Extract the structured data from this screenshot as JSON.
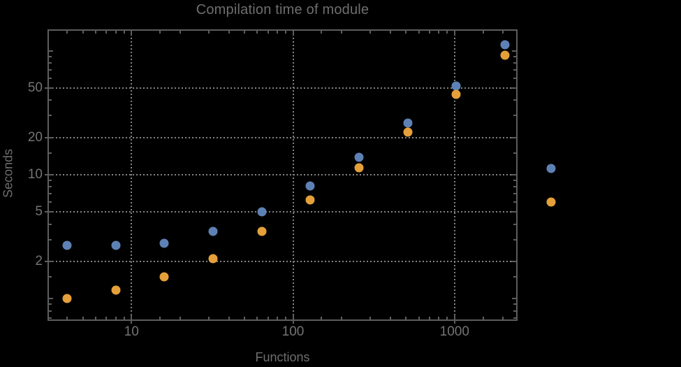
{
  "title": "Compilation time of module",
  "colors": {
    "background": "#000000",
    "frame": "#5d5d5d",
    "gridline": "#838383",
    "text": "#6e6e6e",
    "series1_blue": "#5E81B5",
    "series2_orange": "#E5A03A"
  },
  "chart_data": {
    "type": "scatter",
    "title": "Compilation time of module",
    "xlabel": "Functions",
    "ylabel": "Seconds",
    "xscale": "log",
    "yscale": "log",
    "xlim": [
      3.05,
      2430
    ],
    "ylim": [
      0.672,
      146.9
    ],
    "x_ticks": [
      10,
      100,
      1000
    ],
    "y_ticks": [
      2,
      5,
      10,
      20,
      50
    ],
    "grid": "dotted",
    "grid_x_values": [
      10,
      100,
      1000
    ],
    "grid_y_values": [
      2,
      5,
      10,
      20,
      50
    ],
    "x": [
      4,
      8,
      16,
      32,
      64,
      128,
      256,
      512,
      1024,
      2048
    ],
    "series": [
      {
        "name": "series-1",
        "color": "#5E81B5",
        "values": [
          2.7,
          2.7,
          2.8,
          3.5,
          5.0,
          8.1,
          13.8,
          26,
          52,
          112
        ]
      },
      {
        "name": "series-2",
        "color": "#E5A03A",
        "values": [
          1.0,
          1.17,
          1.5,
          2.1,
          3.5,
          6.3,
          11.4,
          22,
          44.5,
          92
        ]
      }
    ],
    "legend": {
      "position": "right-outside",
      "labels_visible": false,
      "items": [
        {
          "series": "series-1",
          "color": "#5E81B5",
          "label": ""
        },
        {
          "series": "series-2",
          "color": "#E5A03A",
          "label": ""
        }
      ]
    }
  }
}
